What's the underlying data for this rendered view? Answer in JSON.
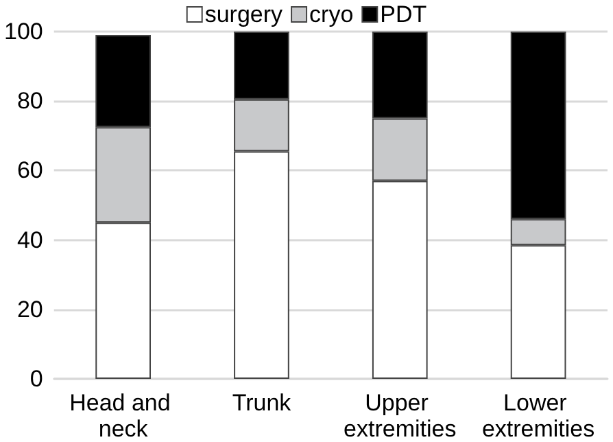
{
  "chart_data": {
    "type": "bar",
    "stacked": true,
    "categories": [
      "Head and neck",
      "Trunk",
      "Upper extremities",
      "Lower extremities"
    ],
    "series": [
      {
        "name": "surgery",
        "color": "#ffffff",
        "values": [
          45,
          65.5,
          57,
          38.5
        ]
      },
      {
        "name": "cryo",
        "color": "#c8c9cb",
        "values": [
          27.5,
          15,
          18,
          7.5
        ]
      },
      {
        "name": "PDT",
        "color": "#000000",
        "values": [
          26.5,
          19.5,
          25,
          54
        ]
      }
    ],
    "ylim": [
      0,
      100
    ],
    "yticks": [
      0,
      20,
      40,
      60,
      80,
      100
    ],
    "grid": "y",
    "legend": "top"
  }
}
